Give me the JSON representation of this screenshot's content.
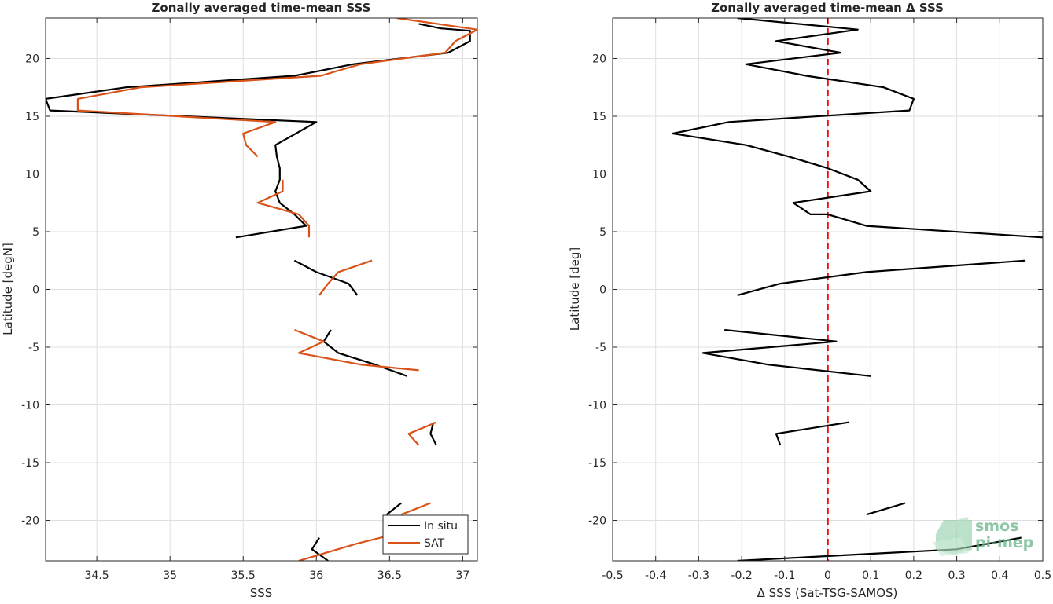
{
  "chart_data": [
    {
      "type": "line",
      "title": "Zonally averaged time-mean SSS",
      "xlabel": "SSS",
      "ylabel": "Latitude [degN]",
      "xlim": [
        34.15,
        37.1
      ],
      "ylim": [
        -23.5,
        23.5
      ],
      "grid": true,
      "legend_position": "bottom-right",
      "x_ticks": [
        "34.5",
        "35",
        "35.5",
        "36",
        "36.5",
        "37"
      ],
      "x_tick_values": [
        34.5,
        35.0,
        35.5,
        36.0,
        36.5,
        37.0
      ],
      "y_ticks": [
        "-20",
        "-15",
        "-10",
        "-5",
        "0",
        "5",
        "10",
        "15",
        "20"
      ],
      "y_tick_values": [
        -20,
        -15,
        -10,
        -5,
        0,
        5,
        10,
        15,
        20
      ],
      "series": [
        {
          "name": "In situ",
          "color": "#000000",
          "segments": [
            [
              [
                36.7,
                23.0
              ],
              [
                36.85,
                22.6
              ],
              [
                37.05,
                22.4
              ],
              [
                37.05,
                21.5
              ],
              [
                36.9,
                20.5
              ],
              [
                36.25,
                19.5
              ],
              [
                35.85,
                18.5
              ],
              [
                34.7,
                17.5
              ],
              [
                34.15,
                16.5
              ],
              [
                34.18,
                15.5
              ],
              [
                36.0,
                14.5
              ],
              [
                35.72,
                12.5
              ],
              [
                35.73,
                11.5
              ],
              [
                35.75,
                10.5
              ],
              [
                35.75,
                9.5
              ],
              [
                35.72,
                8.5
              ],
              [
                35.75,
                7.5
              ],
              [
                35.85,
                6.5
              ],
              [
                35.93,
                5.5
              ],
              [
                35.45,
                4.5
              ]
            ],
            [
              [
                35.85,
                2.5
              ],
              [
                36.0,
                1.5
              ],
              [
                36.22,
                0.5
              ],
              [
                36.28,
                -0.5
              ]
            ],
            [
              [
                36.1,
                -3.5
              ],
              [
                36.05,
                -4.5
              ],
              [
                36.15,
                -5.5
              ],
              [
                36.4,
                -6.5
              ],
              [
                36.62,
                -7.5
              ]
            ],
            [
              [
                36.8,
                -11.5
              ],
              [
                36.78,
                -12.5
              ],
              [
                36.82,
                -13.5
              ]
            ],
            [
              [
                36.58,
                -18.5
              ],
              [
                36.48,
                -19.5
              ]
            ],
            [
              [
                36.02,
                -21.5
              ],
              [
                35.97,
                -22.5
              ],
              [
                36.08,
                -23.5
              ]
            ]
          ]
        },
        {
          "name": "SAT",
          "color": "#d95319",
          "segments": [
            [
              [
                36.55,
                23.5
              ],
              [
                37.1,
                22.5
              ],
              [
                36.95,
                21.5
              ],
              [
                36.88,
                20.5
              ],
              [
                36.3,
                19.5
              ],
              [
                36.03,
                18.5
              ],
              [
                34.8,
                17.5
              ],
              [
                34.37,
                16.5
              ],
              [
                34.37,
                15.5
              ],
              [
                35.72,
                14.5
              ],
              [
                35.5,
                13.5
              ],
              [
                35.52,
                12.5
              ],
              [
                35.6,
                11.5
              ]
            ],
            [
              [
                35.77,
                9.5
              ],
              [
                35.77,
                8.5
              ],
              [
                35.6,
                7.5
              ],
              [
                35.88,
                6.5
              ],
              [
                35.95,
                5.5
              ],
              [
                35.95,
                4.5
              ]
            ],
            [
              [
                36.38,
                2.5
              ],
              [
                36.15,
                1.5
              ],
              [
                36.08,
                0.5
              ],
              [
                36.02,
                -0.5
              ]
            ],
            [
              [
                35.85,
                -3.5
              ],
              [
                36.05,
                -4.5
              ],
              [
                35.88,
                -5.5
              ],
              [
                36.3,
                -6.5
              ],
              [
                36.7,
                -7.0
              ]
            ],
            [
              [
                36.82,
                -11.5
              ],
              [
                36.63,
                -12.5
              ],
              [
                36.7,
                -13.5
              ]
            ],
            [
              [
                36.78,
                -18.5
              ],
              [
                36.58,
                -19.5
              ]
            ],
            [
              [
                36.6,
                -21.0
              ],
              [
                36.28,
                -22.0
              ],
              [
                35.88,
                -23.5
              ]
            ]
          ]
        }
      ]
    },
    {
      "type": "line",
      "title": "Zonally averaged time-mean Δ SSS",
      "xlabel": "Δ SSS (Sat-TSG-SAMOS)",
      "ylabel": "Latitude [deg]",
      "xlim": [
        -0.5,
        0.5
      ],
      "ylim": [
        -23.5,
        23.5
      ],
      "grid": true,
      "reference_line": {
        "x": 0,
        "color": "#ff0000",
        "style": "dashed"
      },
      "x_ticks": [
        "-0.5",
        "-0.4",
        "-0.3",
        "-0.2",
        "-0.1",
        "0",
        "0.1",
        "0.2",
        "0.3",
        "0.4",
        "0.5"
      ],
      "x_tick_values": [
        -0.5,
        -0.4,
        -0.3,
        -0.2,
        -0.1,
        0.0,
        0.1,
        0.2,
        0.3,
        0.4,
        0.5
      ],
      "y_ticks": [
        "-20",
        "-15",
        "-10",
        "-5",
        "0",
        "5",
        "10",
        "15",
        "20"
      ],
      "y_tick_values": [
        -20,
        -15,
        -10,
        -5,
        0,
        5,
        10,
        15,
        20
      ],
      "series": [
        {
          "color": "#000000",
          "segments": [
            [
              [
                -0.21,
                23.5
              ],
              [
                0.07,
                22.5
              ],
              [
                -0.12,
                21.5
              ],
              [
                0.03,
                20.5
              ],
              [
                -0.19,
                19.5
              ],
              [
                -0.05,
                18.5
              ],
              [
                0.13,
                17.5
              ],
              [
                0.2,
                16.5
              ],
              [
                0.19,
                15.5
              ],
              [
                -0.23,
                14.5
              ],
              [
                -0.36,
                13.5
              ],
              [
                -0.19,
                12.5
              ],
              [
                -0.09,
                11.5
              ],
              [
                0.0,
                10.5
              ],
              [
                0.07,
                9.5
              ],
              [
                0.1,
                8.5
              ],
              [
                -0.08,
                7.5
              ],
              [
                -0.04,
                6.5
              ],
              [
                0.0,
                6.5
              ],
              [
                0.09,
                5.5
              ],
              [
                0.5,
                4.5
              ]
            ],
            [
              [
                0.46,
                2.5
              ],
              [
                0.09,
                1.5
              ],
              [
                -0.11,
                0.5
              ],
              [
                -0.21,
                -0.5
              ]
            ],
            [
              [
                -0.24,
                -3.5
              ],
              [
                0.02,
                -4.5
              ],
              [
                -0.29,
                -5.5
              ],
              [
                -0.14,
                -6.5
              ],
              [
                0.1,
                -7.5
              ]
            ],
            [
              [
                0.05,
                -11.5
              ],
              [
                -0.12,
                -12.5
              ],
              [
                -0.11,
                -13.5
              ]
            ],
            [
              [
                0.18,
                -18.5
              ],
              [
                0.09,
                -19.5
              ]
            ],
            [
              [
                0.45,
                -21.5
              ],
              [
                0.3,
                -22.5
              ],
              [
                -0.21,
                -23.5
              ]
            ]
          ]
        }
      ]
    }
  ],
  "watermark": {
    "line1": "smos",
    "line2": "pi-mep",
    "icon": "smos-pi-mep-logo-icon"
  }
}
